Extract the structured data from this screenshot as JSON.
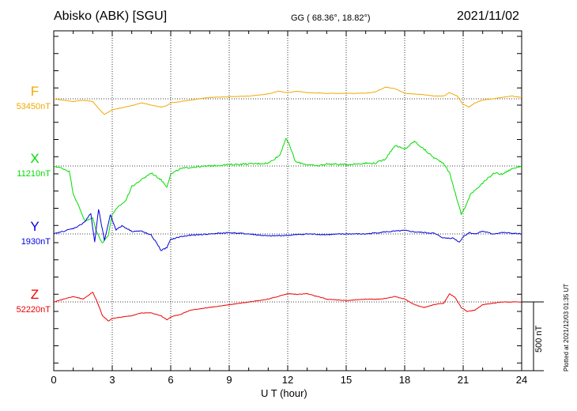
{
  "header": {
    "station": "Abisko (ABK)  [SGU]",
    "coords": "GG ( 68.36°,  18.82°)",
    "date": "2021/11/02"
  },
  "footer": {
    "xlabel": "U T (hour)",
    "plotted": "Plotted at 2021/12/03 01:35 UT"
  },
  "scale": {
    "label": "500 nT",
    "value_nT": 500
  },
  "chart_data": {
    "type": "line",
    "xlabel": "U T (hour)",
    "xlim": [
      0,
      24
    ],
    "xticks": [
      "0",
      "3",
      "6",
      "9",
      "12",
      "15",
      "18",
      "21",
      "24"
    ],
    "grid": true,
    "series": [
      {
        "name": "F",
        "baseline": "53450nT",
        "color": "#f2a900",
        "x": [
          0,
          0.5,
          1.0,
          1.5,
          2.0,
          2.3,
          2.6,
          3.0,
          3.5,
          4.0,
          4.5,
          5.0,
          5.5,
          5.8,
          6.0,
          6.5,
          7.0,
          7.5,
          8.0,
          9.0,
          10.0,
          11.0,
          11.5,
          12.0,
          12.5,
          13.0,
          14.0,
          15.0,
          16.0,
          16.5,
          17.0,
          17.5,
          18.0,
          18.5,
          19.0,
          19.5,
          20.0,
          20.3,
          20.7,
          21.0,
          21.3,
          21.6,
          22.0,
          22.5,
          23.0,
          23.5,
          24.0
        ],
        "y": [
          0,
          -10,
          -20,
          -10,
          -20,
          -70,
          -115,
          -80,
          -65,
          -50,
          -30,
          -45,
          -60,
          -50,
          -30,
          -20,
          -10,
          0,
          10,
          15,
          20,
          35,
          55,
          45,
          55,
          45,
          40,
          40,
          40,
          50,
          85,
          75,
          40,
          35,
          30,
          20,
          20,
          45,
          20,
          -40,
          -60,
          -30,
          -10,
          0,
          10,
          20,
          10
        ]
      },
      {
        "name": "X",
        "baseline": "11210nT",
        "color": "#00dd00",
        "x": [
          0,
          0.5,
          0.8,
          1.0,
          1.3,
          1.6,
          2.0,
          2.2,
          2.5,
          2.8,
          3.0,
          3.3,
          3.7,
          4.0,
          4.5,
          5.0,
          5.5,
          5.8,
          6.0,
          6.5,
          7.0,
          8.0,
          9.0,
          10.0,
          11.0,
          11.6,
          11.9,
          12.1,
          12.4,
          13.0,
          13.5,
          14.0,
          15.0,
          16.0,
          16.5,
          17.0,
          17.5,
          18.0,
          18.5,
          19.0,
          19.5,
          20.0,
          20.3,
          20.6,
          20.9,
          21.1,
          21.4,
          21.8,
          22.2,
          22.6,
          23.0,
          23.5,
          24.0
        ],
        "y": [
          0,
          -20,
          -40,
          -200,
          -300,
          -400,
          -380,
          -480,
          -560,
          -500,
          -350,
          -300,
          -250,
          -150,
          -100,
          -50,
          -100,
          -150,
          -60,
          -20,
          -10,
          0,
          10,
          15,
          20,
          80,
          200,
          150,
          30,
          10,
          0,
          15,
          10,
          20,
          20,
          50,
          150,
          120,
          180,
          120,
          60,
          20,
          -50,
          -200,
          -350,
          -300,
          -200,
          -150,
          -100,
          -50,
          -60,
          -20,
          0
        ]
      },
      {
        "name": "Y",
        "baseline": "1930nT",
        "color": "#0000dd",
        "x": [
          0,
          0.5,
          1.0,
          1.3,
          1.6,
          1.9,
          2.1,
          2.3,
          2.6,
          2.9,
          3.2,
          3.5,
          4.0,
          4.5,
          5.0,
          5.3,
          5.5,
          5.8,
          6.0,
          6.5,
          7.0,
          8.0,
          9.0,
          10.0,
          11.0,
          12.0,
          13.0,
          14.0,
          15.0,
          16.0,
          17.0,
          18.0,
          18.5,
          19.0,
          19.5,
          20.0,
          20.5,
          20.8,
          21.0,
          21.3,
          21.6,
          22.0,
          22.5,
          23.0,
          24.0
        ],
        "y": [
          0,
          20,
          40,
          60,
          90,
          150,
          -60,
          180,
          -50,
          140,
          30,
          60,
          20,
          20,
          -10,
          -70,
          -120,
          -100,
          -40,
          -20,
          -10,
          0,
          10,
          0,
          -15,
          -10,
          0,
          -5,
          0,
          0,
          15,
          25,
          15,
          10,
          5,
          -30,
          -30,
          -60,
          -20,
          10,
          0,
          20,
          0,
          10,
          0
        ]
      },
      {
        "name": "Z",
        "baseline": "52220nT",
        "color": "#ee0000",
        "x": [
          0,
          0.5,
          1.0,
          1.5,
          2.0,
          2.2,
          2.5,
          2.8,
          3.0,
          3.5,
          4.0,
          4.5,
          5.0,
          5.5,
          5.8,
          6.0,
          6.5,
          7.0,
          8.0,
          9.0,
          10.0,
          11.0,
          11.5,
          12.0,
          12.5,
          13.0,
          14.0,
          15.0,
          16.0,
          16.5,
          17.0,
          17.5,
          18.0,
          18.5,
          19.0,
          19.5,
          20.0,
          20.3,
          20.6,
          20.9,
          21.2,
          21.6,
          22.0,
          22.5,
          23.0,
          23.5,
          24.0
        ],
        "y": [
          0,
          20,
          40,
          20,
          70,
          10,
          -100,
          -140,
          -120,
          -110,
          -100,
          -80,
          -80,
          -100,
          -130,
          -110,
          -90,
          -60,
          -40,
          -20,
          0,
          20,
          40,
          60,
          55,
          60,
          20,
          10,
          20,
          20,
          25,
          40,
          20,
          -20,
          -40,
          -20,
          -10,
          60,
          30,
          -40,
          -70,
          -60,
          -20,
          -10,
          0,
          0,
          0
        ]
      }
    ]
  }
}
